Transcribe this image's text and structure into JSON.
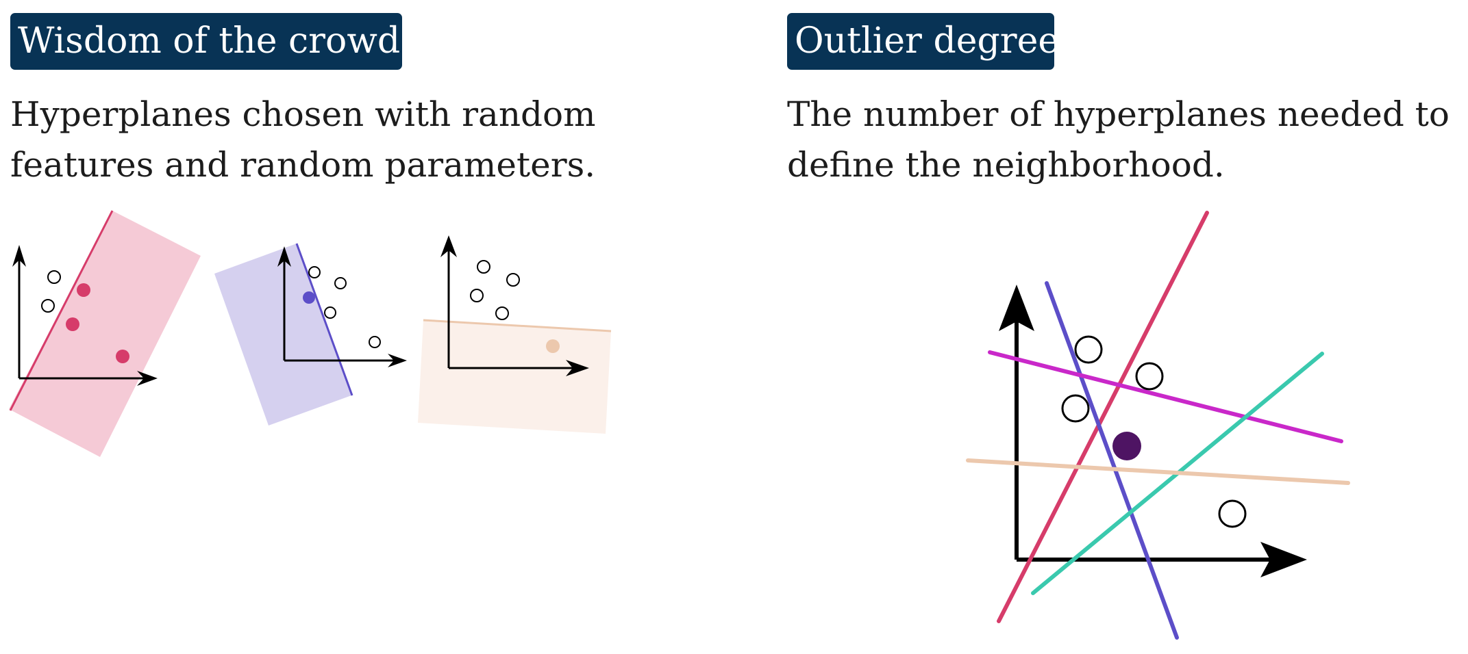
{
  "left_panel": {
    "title": "Wisdom of the crowd",
    "description_lines": [
      "Hyperplanes chosen with random",
      "features and random parameters."
    ]
  },
  "right_panel": {
    "title": "Outlier degree",
    "description_lines": [
      "The number of hyperplanes needed to",
      "define the neighborhood."
    ]
  },
  "colors": {
    "title_background": "#083355",
    "title_text": "#ffffff",
    "body_text": "#1c1c1c",
    "red": "#d63c6a",
    "red_region": "#f5cad6",
    "blue": "#5c4ec8",
    "blue_region": "#d5d0ef",
    "peach": "#ecc8ad",
    "peach_region": "#fbf0ea",
    "magenta": "#c928c9",
    "teal": "#3ac9ae",
    "outlier_point": "#4e1463",
    "axis": "#000000"
  }
}
